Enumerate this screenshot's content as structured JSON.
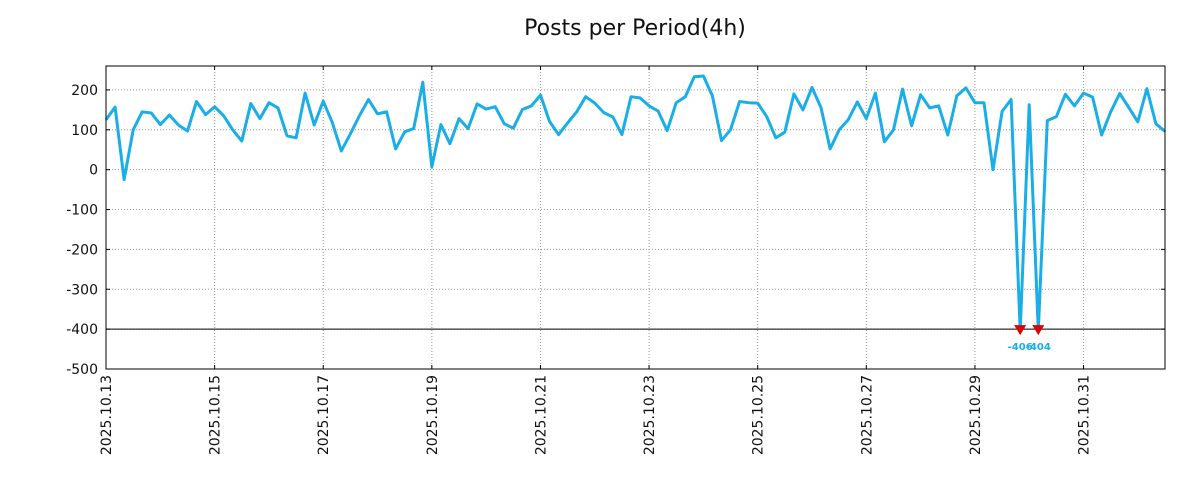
{
  "chart_data": {
    "type": "line",
    "title": "Posts per Period(4h)",
    "xlabel": "",
    "ylabel": "",
    "ylim": [
      -500,
      260
    ],
    "yticks": [
      -500,
      -400,
      -300,
      -200,
      -100,
      0,
      100,
      200
    ],
    "ytick_labels": [
      "-500",
      "-400",
      "-300",
      "-200",
      "-100",
      "0",
      "100",
      "200"
    ],
    "xticks": [
      "2025.10.13",
      "2025.10.15",
      "2025.10.17",
      "2025.10.19",
      "2025.10.21",
      "2025.10.23",
      "2025.10.25",
      "2025.10.27",
      "2025.10.29",
      "2025.10.31"
    ],
    "grid": true,
    "x_start": "2025.10.13 00:00",
    "interval_hours": 4,
    "threshold_line": -400,
    "line_color": "#1aaee8",
    "marker_color": "#dd0000",
    "series": [
      {
        "name": "",
        "values": [
          125,
          157,
          -25,
          100,
          145,
          142,
          113,
          137,
          112,
          97,
          171,
          138,
          158,
          135,
          100,
          72,
          166,
          128,
          168,
          155,
          85,
          80,
          192,
          112,
          172,
          118,
          47,
          90,
          135,
          176,
          140,
          145,
          52,
          95,
          103,
          219,
          7,
          113,
          65,
          128,
          103,
          165,
          152,
          158,
          115,
          104,
          151,
          160,
          187,
          121,
          88,
          117,
          145,
          183,
          167,
          143,
          132,
          88,
          183,
          180,
          160,
          147,
          98,
          168,
          183,
          233,
          235,
          185,
          73,
          100,
          171,
          168,
          167,
          133,
          80,
          94,
          190,
          150,
          206,
          155,
          52,
          100,
          125,
          170,
          128,
          192,
          70,
          100,
          202,
          110,
          188,
          155,
          160,
          87,
          185,
          205,
          168,
          168,
          0,
          146,
          176,
          -406,
          163,
          -404,
          123,
          133,
          189,
          160,
          192,
          182,
          87,
          145,
          191,
          156,
          120,
          203,
          115,
          96
        ]
      }
    ],
    "annotations": [
      {
        "label": "-406",
        "value": -406,
        "index": 101
      },
      {
        "label": "-404",
        "value": -404,
        "index": 103
      }
    ]
  }
}
